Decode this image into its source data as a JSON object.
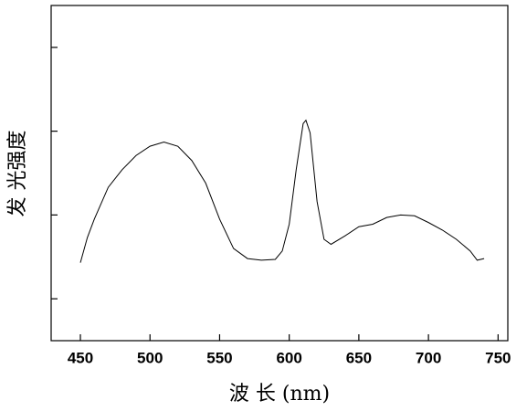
{
  "chart_data": {
    "type": "line",
    "x_label": "波 长 (nm)",
    "y_label": "发 光强度",
    "x": [
      450,
      455,
      460,
      470,
      480,
      490,
      500,
      510,
      520,
      530,
      540,
      550,
      560,
      570,
      580,
      590,
      595,
      600,
      605,
      610,
      612,
      615,
      620,
      625,
      630,
      640,
      650,
      660,
      670,
      680,
      690,
      700,
      710,
      720,
      730,
      735,
      740
    ],
    "series": [
      {
        "color": "#000000",
        "values": [
          0.93,
          1.23,
          1.45,
          1.83,
          2.04,
          2.21,
          2.32,
          2.37,
          2.32,
          2.15,
          1.88,
          1.45,
          1.1,
          0.98,
          0.96,
          0.97,
          1.07,
          1.39,
          2.04,
          2.59,
          2.63,
          2.48,
          1.66,
          1.21,
          1.15,
          1.25,
          1.36,
          1.39,
          1.47,
          1.5,
          1.49,
          1.41,
          1.32,
          1.21,
          1.07,
          0.96,
          0.98
        ]
      }
    ],
    "xlim": [
      429,
      757
    ],
    "xticks": [
      450,
      500,
      550,
      600,
      650,
      700,
      750
    ],
    "ylim": [
      0,
      4
    ],
    "yticks": [
      0.5,
      1.5,
      2.5,
      3.5
    ],
    "ytick_labels": false
  }
}
